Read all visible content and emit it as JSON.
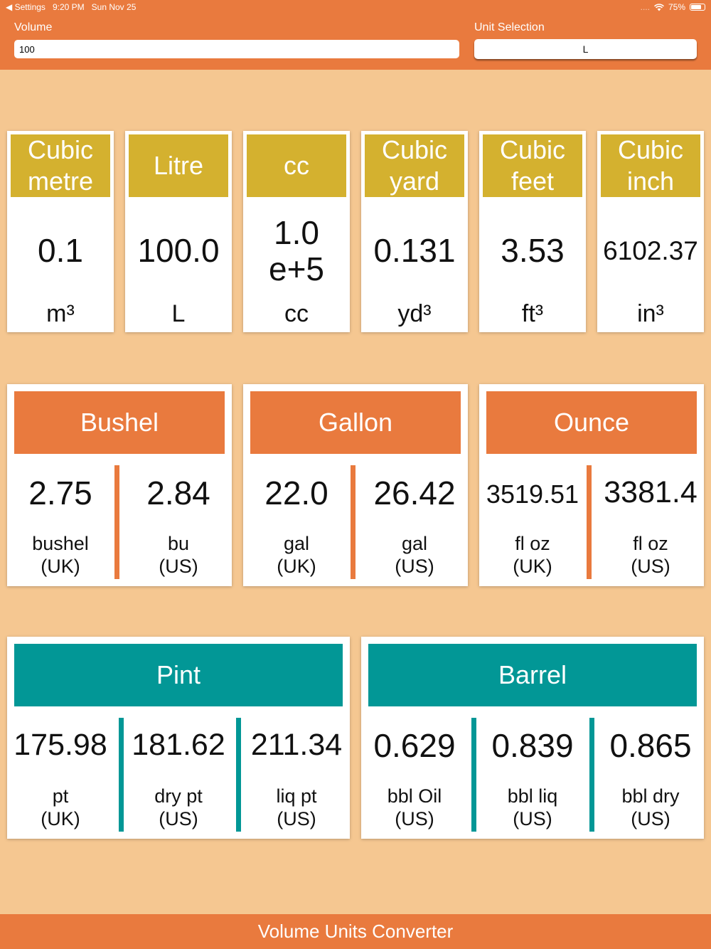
{
  "status_bar": {
    "back_label": "◀ Settings",
    "time": "9:20 PM",
    "date": "Sun Nov 25",
    "signal_dots": "....",
    "battery_percent": "75%",
    "battery_level": 0.75
  },
  "volume": {
    "label": "Volume",
    "value": "100"
  },
  "unit_selection": {
    "label": "Unit Selection",
    "value": "L"
  },
  "metric_cards": [
    {
      "title": "Cubic metre",
      "value": "0.1",
      "unit": "m³"
    },
    {
      "title": "Litre",
      "value": "100.0",
      "unit": "L"
    },
    {
      "title": "cc",
      "value": "1.0 e+5",
      "unit": "cc"
    },
    {
      "title": "Cubic yard",
      "value": "0.131",
      "unit": "yd³"
    },
    {
      "title": "Cubic feet",
      "value": "3.53",
      "unit": "ft³"
    },
    {
      "title": "Cubic inch",
      "value": "6102.37",
      "unit": "in³"
    }
  ],
  "group_cards_row1": [
    {
      "title": "Bushel",
      "values": [
        {
          "value": "2.75",
          "unit": "bushel",
          "region": "(UK)"
        },
        {
          "value": "2.84",
          "unit": "bu",
          "region": "(US)"
        }
      ]
    },
    {
      "title": "Gallon",
      "values": [
        {
          "value": "22.0",
          "unit": "gal",
          "region": "(UK)"
        },
        {
          "value": "26.42",
          "unit": "gal",
          "region": "(US)"
        }
      ]
    },
    {
      "title": "Ounce",
      "values": [
        {
          "value": "3519.51",
          "unit": "fl oz",
          "region": "(UK)"
        },
        {
          "value": "3381.4",
          "unit": "fl oz",
          "region": "(US)"
        }
      ]
    }
  ],
  "group_cards_row2": [
    {
      "title": "Pint",
      "values": [
        {
          "value": "175.98",
          "unit": "pt",
          "region": "(UK)"
        },
        {
          "value": "181.62",
          "unit": "dry pt",
          "region": "(US)"
        },
        {
          "value": "211.34",
          "unit": "liq pt",
          "region": "(US)"
        }
      ]
    },
    {
      "title": "Barrel",
      "values": [
        {
          "value": "0.629",
          "unit": "bbl Oil",
          "region": "(US)"
        },
        {
          "value": "0.839",
          "unit": "bbl liq",
          "region": "(US)"
        },
        {
          "value": "0.865",
          "unit": "bbl dry",
          "region": "(US)"
        }
      ]
    }
  ],
  "footer": {
    "title": "Volume Units Converter"
  },
  "colors": {
    "background": "#F5C791",
    "header": "#E97A3E",
    "metric_header": "#D4B12F",
    "group_orange": "#E97A3E",
    "group_teal": "#029796"
  }
}
